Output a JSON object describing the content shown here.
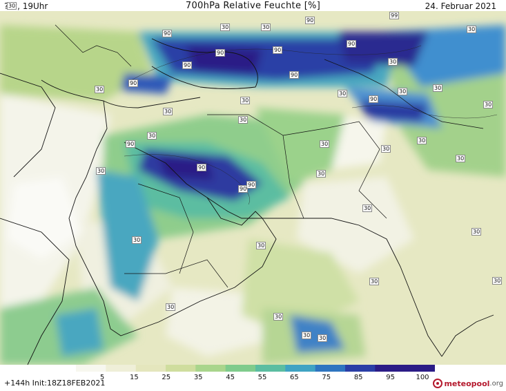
{
  "header": {
    "left": "???, 19Uhr",
    "title": "700hPa Relative Feuchte [%]",
    "date": "24. Februar 2021"
  },
  "footer": {
    "init": "+144h  Init:18Z18FEB2021",
    "logo_main": "meteopool",
    "logo_tld": ".org"
  },
  "legend": {
    "ticks": [
      "5",
      "15",
      "25",
      "35",
      "45",
      "55",
      "65",
      "75",
      "85",
      "95",
      "100"
    ],
    "colors": [
      "#f7f7ef",
      "#efefd8",
      "#e4e6bd",
      "#cfdd9e",
      "#a9d58c",
      "#7fcb8c",
      "#5bbda1",
      "#3fa3c3",
      "#2e75c0",
      "#2a3ea6",
      "#2b1c86",
      "#2b1c86"
    ]
  },
  "contour_labels": [
    {
      "text": "90"
    },
    {
      "text": "90"
    },
    {
      "text": "90"
    },
    {
      "text": "90"
    },
    {
      "text": "90"
    },
    {
      "text": "90"
    },
    {
      "text": "90"
    },
    {
      "text": "90"
    },
    {
      "text": "90"
    },
    {
      "text": "90"
    },
    {
      "text": "90"
    },
    {
      "text": "90"
    },
    {
      "text": "90"
    },
    {
      "text": "99"
    },
    {
      "text": "30"
    },
    {
      "text": "30"
    },
    {
      "text": "30"
    },
    {
      "text": "30"
    },
    {
      "text": "30"
    },
    {
      "text": "30"
    },
    {
      "text": "30"
    },
    {
      "text": "30"
    },
    {
      "text": "30"
    },
    {
      "text": "30"
    },
    {
      "text": "30"
    },
    {
      "text": "30"
    },
    {
      "text": "30"
    },
    {
      "text": "30"
    },
    {
      "text": "30"
    },
    {
      "text": "30"
    },
    {
      "text": "30"
    },
    {
      "text": "30"
    },
    {
      "text": "30"
    },
    {
      "text": "30"
    },
    {
      "text": "30"
    },
    {
      "text": "30"
    },
    {
      "text": "30"
    },
    {
      "text": "30"
    },
    {
      "text": "30"
    },
    {
      "text": "30"
    },
    {
      "text": "30"
    },
    {
      "text": "30"
    },
    {
      "text": "30"
    },
    {
      "text": "30"
    }
  ]
}
